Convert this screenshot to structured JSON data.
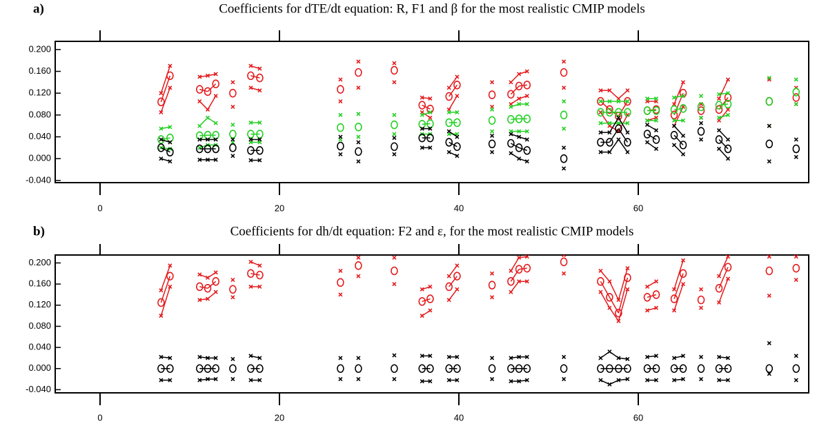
{
  "chart_data": [
    {
      "type": "scatter",
      "panel": "a)",
      "title": "Coefficients for dTE/dt equation: R, F1 and β for the most realistic CMIP models",
      "xlim": [
        -5,
        79
      ],
      "xticks": [
        0,
        20,
        40,
        60
      ],
      "ylim": [
        -0.044,
        0.215
      ],
      "yticks": [
        {
          "value": -0.04,
          "label": "-0.040"
        },
        {
          "value": 0,
          "label": "0.000"
        },
        {
          "value": 0.04,
          "label": "0.040"
        },
        {
          "value": 0.08,
          "label": "0.080"
        },
        {
          "value": 0.12,
          "label": "0.120"
        },
        {
          "value": 0.16,
          "label": "0.160"
        },
        {
          "value": 0.2,
          "label": "0.200"
        }
      ],
      "x": [
        6.8,
        7.8,
        11.1,
        12,
        12.9,
        14.8,
        16.8,
        17.8,
        26.8,
        28.8,
        32.8,
        35.9,
        36.8,
        38.9,
        39.8,
        43.7,
        45.8,
        46.7,
        47.6,
        51.7,
        55.8,
        56.8,
        57.8,
        58.8,
        61,
        62,
        64,
        65,
        67,
        69,
        70,
        74.6,
        77.6
      ],
      "series": [
        {
          "color": "#e41a1c",
          "values": [
            0.104,
            0.152,
            0.127,
            0.123,
            0.137,
            0.12,
            0.152,
            0.148,
            0.127,
            0.158,
            0.162,
            0.098,
            0.091,
            0.114,
            0.135,
            0.117,
            0.118,
            0.133,
            0.135,
            0.158,
            0.105,
            0.09,
            0.078,
            0.105,
            0.088,
            0.09,
            0.08,
            0.12,
            0.088,
            0.09,
            0.112,
            0.105,
            0.112
          ],
          "lower": [
            0.085,
            0.13,
            0.105,
            0.09,
            0.115,
            0.095,
            0.13,
            0.125,
            0.105,
            0.13,
            0.14,
            0.085,
            0.075,
            0.09,
            0.115,
            0.095,
            0.1,
            0.11,
            0.115,
            0.13,
            0.085,
            0.06,
            0.05,
            0.08,
            0.07,
            0.075,
            0.06,
            0.095,
            0.075,
            0.07,
            0.09,
            0.06,
            0.1
          ],
          "upper": [
            0.12,
            0.17,
            0.15,
            0.152,
            0.155,
            0.14,
            0.17,
            0.165,
            0.145,
            0.178,
            0.175,
            0.112,
            0.11,
            0.13,
            0.15,
            0.14,
            0.14,
            0.155,
            0.16,
            0.178,
            0.125,
            0.125,
            0.11,
            0.125,
            0.105,
            0.105,
            0.1,
            0.14,
            0.1,
            0.11,
            0.145,
            0.145,
            0.13
          ]
        },
        {
          "color": "#22d022",
          "values": [
            0.035,
            0.038,
            0.042,
            0.043,
            0.043,
            0.045,
            0.045,
            0.045,
            0.057,
            0.058,
            0.062,
            0.063,
            0.064,
            0.066,
            0.066,
            0.07,
            0.072,
            0.073,
            0.073,
            0.08,
            0.085,
            0.085,
            0.085,
            0.085,
            0.088,
            0.088,
            0.09,
            0.092,
            0.095,
            0.098,
            0.1,
            0.105,
            0.122
          ],
          "lower": [
            0.02,
            0.018,
            0.02,
            0.025,
            0.025,
            0.03,
            0.03,
            0.03,
            0.035,
            0.04,
            0.045,
            0.045,
            0.045,
            0.045,
            0.045,
            0.05,
            0.05,
            0.05,
            0.05,
            0.055,
            0.065,
            0.065,
            0.065,
            0.065,
            0.07,
            0.07,
            0.07,
            0.07,
            0.075,
            0.075,
            0.08,
            0.06,
            0.1
          ],
          "upper": [
            0.055,
            0.058,
            0.06,
            0.075,
            0.065,
            0.062,
            0.066,
            0.066,
            0.08,
            0.082,
            0.08,
            0.08,
            0.085,
            0.085,
            0.085,
            0.09,
            0.095,
            0.1,
            0.1,
            0.105,
            0.105,
            0.105,
            0.105,
            0.105,
            0.11,
            0.11,
            0.112,
            0.115,
            0.115,
            0.118,
            0.12,
            0.148,
            0.145
          ]
        },
        {
          "color": "#000000",
          "values": [
            0.02,
            0.012,
            0.018,
            0.018,
            0.018,
            0.02,
            0.015,
            0.015,
            0.023,
            0.013,
            0.022,
            0.038,
            0.038,
            0.03,
            0.022,
            0.027,
            0.028,
            0.02,
            0.015,
            0,
            0.03,
            0.03,
            0.055,
            0.03,
            0.045,
            0.035,
            0.043,
            0.025,
            0.05,
            0.035,
            0.018,
            0.027,
            0.018
          ],
          "lower": [
            0,
            -0.005,
            -0.002,
            -0.002,
            -0.002,
            0.005,
            -0.003,
            -0.003,
            0.008,
            -0.005,
            0.008,
            0.02,
            0.02,
            0.012,
            0.005,
            0.012,
            0.01,
            0,
            -0.005,
            -0.018,
            0.012,
            0.012,
            0.035,
            0.012,
            0.03,
            0.018,
            0.025,
            0.008,
            0.035,
            0.018,
            0,
            -0.005,
            0.003
          ],
          "upper": [
            0.035,
            0.03,
            0.035,
            0.035,
            0.035,
            0.035,
            0.035,
            0.035,
            0.04,
            0.03,
            0.038,
            0.055,
            0.055,
            0.05,
            0.04,
            0.042,
            0.045,
            0.04,
            0.035,
            0.02,
            0.048,
            0.048,
            0.075,
            0.048,
            0.062,
            0.052,
            0.06,
            0.042,
            0.065,
            0.052,
            0.035,
            0.06,
            0.035
          ]
        }
      ]
    },
    {
      "type": "scatter",
      "panel": "b)",
      "title": "Coefficients for dh/dt equation: F2 and ε, for the most realistic CMIP models",
      "xlim": [
        -5,
        79
      ],
      "xticks": [
        0,
        20,
        40,
        60
      ],
      "ylim": [
        -0.046,
        0.215
      ],
      "yticks": [
        {
          "value": -0.04,
          "label": "-0.040"
        },
        {
          "value": 0,
          "label": "0.000"
        },
        {
          "value": 0.04,
          "label": "0.040"
        },
        {
          "value": 0.08,
          "label": "0.080"
        },
        {
          "value": 0.12,
          "label": "0.120"
        },
        {
          "value": 0.16,
          "label": "0.160"
        },
        {
          "value": 0.2,
          "label": "0.200"
        }
      ],
      "x": [
        6.8,
        7.8,
        11.1,
        12,
        12.9,
        14.8,
        16.8,
        17.8,
        26.8,
        28.8,
        32.8,
        35.9,
        36.8,
        38.9,
        39.8,
        43.7,
        45.8,
        46.7,
        47.6,
        51.7,
        55.8,
        56.8,
        57.8,
        58.8,
        61,
        62,
        64,
        65,
        67,
        69,
        70,
        74.6,
        77.6
      ],
      "series": [
        {
          "color": "#e41a1c",
          "values": [
            0.125,
            0.175,
            0.155,
            0.152,
            0.165,
            0.15,
            0.18,
            0.177,
            0.163,
            0.195,
            0.185,
            0.127,
            0.132,
            0.155,
            0.175,
            0.158,
            0.165,
            0.188,
            0.19,
            0.202,
            0.165,
            0.135,
            0.105,
            0.172,
            0.135,
            0.14,
            0.132,
            0.18,
            0.13,
            0.152,
            0.192,
            0.185,
            0.19
          ],
          "lower": [
            0.1,
            0.155,
            0.13,
            0.132,
            0.145,
            0.135,
            0.155,
            0.155,
            0.14,
            0.175,
            0.16,
            0.1,
            0.11,
            0.13,
            0.15,
            0.135,
            0.145,
            0.165,
            0.165,
            0.18,
            0.145,
            0.115,
            0.09,
            0.15,
            0.11,
            0.115,
            0.11,
            0.16,
            0.115,
            0.125,
            0.17,
            0.138,
            0.168
          ],
          "upper": [
            0.148,
            0.195,
            0.178,
            0.172,
            0.182,
            0.168,
            0.202,
            0.195,
            0.185,
            0.21,
            0.21,
            0.15,
            0.155,
            0.175,
            0.195,
            0.18,
            0.185,
            0.21,
            0.212,
            0.215,
            0.185,
            0.165,
            0.13,
            0.19,
            0.155,
            0.165,
            0.15,
            0.205,
            0.15,
            0.175,
            0.212,
            0.212,
            0.212
          ]
        },
        {
          "color": "#000000",
          "values": [
            0,
            0,
            0,
            0,
            0,
            0,
            0,
            0,
            0,
            0,
            0,
            0,
            0,
            0,
            0,
            0,
            0,
            0,
            0,
            0,
            0,
            0,
            0,
            0,
            0,
            0,
            0,
            0,
            0,
            0,
            0,
            0,
            0
          ],
          "lower": [
            -0.022,
            -0.022,
            -0.022,
            -0.02,
            -0.02,
            -0.02,
            -0.022,
            -0.022,
            -0.02,
            -0.02,
            -0.02,
            -0.024,
            -0.024,
            -0.022,
            -0.022,
            -0.02,
            -0.024,
            -0.024,
            -0.022,
            -0.02,
            -0.022,
            -0.03,
            -0.022,
            -0.02,
            -0.022,
            -0.022,
            -0.022,
            -0.02,
            -0.02,
            -0.022,
            -0.022,
            -0.01,
            -0.022
          ],
          "upper": [
            0.022,
            0.02,
            0.022,
            0.02,
            0.02,
            0.018,
            0.024,
            0.02,
            0.02,
            0.02,
            0.025,
            0.024,
            0.024,
            0.022,
            0.022,
            0.02,
            0.02,
            0.022,
            0.022,
            0.022,
            0.02,
            0.032,
            0.02,
            0.018,
            0.022,
            0.024,
            0.02,
            0.024,
            0.022,
            0.022,
            0.02,
            0.048,
            0.024
          ]
        }
      ]
    }
  ]
}
